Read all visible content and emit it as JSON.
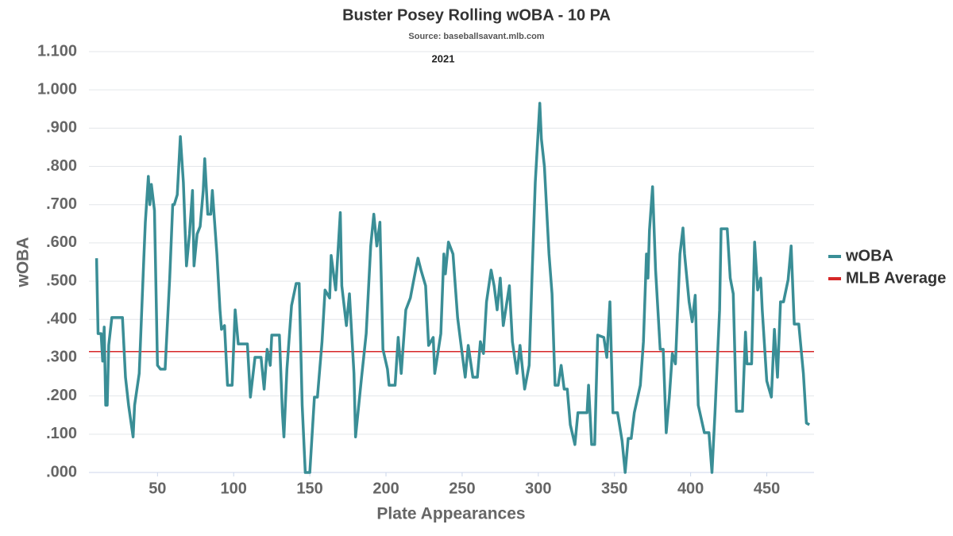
{
  "chart_data": {
    "type": "line",
    "title": "Buster Posey Rolling wOBA - 10 PA",
    "subtitle": "Source: baseballsavant.mlb.com",
    "annotation": "2021",
    "x_label": "Plate Appearances",
    "y_label": "wOBA",
    "xlim": [
      5,
      481
    ],
    "xticks": [
      50,
      100,
      150,
      200,
      250,
      300,
      350,
      400,
      450
    ],
    "ylim": [
      0,
      1.1
    ],
    "yticks": [
      {
        "value": 0,
        "label": ".000"
      },
      {
        "value": 0.1,
        "label": ".100"
      },
      {
        "value": 0.2,
        "label": ".200"
      },
      {
        "value": 0.3,
        "label": ".300"
      },
      {
        "value": 0.4,
        "label": ".400"
      },
      {
        "value": 0.5,
        "label": ".500"
      },
      {
        "value": 0.6,
        "label": ".600"
      },
      {
        "value": 0.7,
        "label": ".700"
      },
      {
        "value": 0.8,
        "label": ".800"
      },
      {
        "value": 0.9,
        "label": ".900"
      },
      {
        "value": 1.0,
        "label": "1.000"
      },
      {
        "value": 1.1,
        "label": "1.100"
      }
    ],
    "grid": true,
    "legend": "right",
    "x": [
      10,
      11,
      13,
      14,
      15,
      16,
      17,
      18,
      20,
      27,
      29,
      31,
      34,
      35,
      38,
      41,
      42,
      44,
      45,
      46,
      48,
      50,
      52,
      55,
      58,
      60,
      61,
      63,
      65,
      67,
      69,
      71,
      73,
      74,
      76,
      78,
      80,
      81,
      83,
      85,
      86,
      89,
      91,
      92,
      94,
      96,
      99,
      101,
      103,
      109,
      111,
      114,
      118,
      120,
      122,
      124,
      125,
      130,
      132,
      133,
      135,
      138,
      141,
      143,
      145,
      147,
      150,
      153,
      155,
      158,
      160,
      163,
      164,
      167,
      170,
      171,
      174,
      176,
      179,
      180,
      184,
      187,
      190,
      192,
      194,
      196,
      198,
      201,
      202,
      206,
      208,
      210,
      213,
      216,
      218,
      221,
      223,
      226,
      228,
      231,
      232,
      236,
      238,
      239,
      241,
      244,
      247,
      249,
      252,
      254,
      257,
      260,
      262,
      264,
      266,
      269,
      271,
      273,
      275,
      277,
      281,
      283,
      286,
      288,
      291,
      294,
      296,
      298,
      301,
      302,
      304,
      307,
      309,
      311,
      313,
      315,
      317,
      319,
      321,
      324,
      326,
      332,
      333,
      335,
      337,
      339,
      343,
      345,
      347,
      349,
      352,
      355,
      357,
      359,
      361,
      363,
      367,
      369,
      371,
      372,
      373,
      375,
      377,
      380,
      382,
      384,
      386,
      388,
      390,
      393,
      395,
      396,
      399,
      401,
      403,
      405,
      409,
      412,
      414,
      416,
      419,
      420,
      424,
      426,
      428,
      430,
      434,
      436,
      437,
      440,
      442,
      444,
      446,
      447,
      450,
      453,
      455,
      457,
      459,
      461,
      464,
      466,
      468,
      471,
      473,
      474,
      476,
      478
    ],
    "series": [
      {
        "name": "wOBA",
        "color": "#3a8e96",
        "values": [
          0.56,
          0.363,
          0.363,
          0.291,
          0.38,
          0.176,
          0.176,
          0.333,
          0.405,
          0.405,
          0.249,
          0.176,
          0.093,
          0.176,
          0.259,
          0.56,
          0.654,
          0.774,
          0.7,
          0.753,
          0.685,
          0.28,
          0.27,
          0.27,
          0.508,
          0.7,
          0.7,
          0.726,
          0.878,
          0.758,
          0.54,
          0.623,
          0.737,
          0.54,
          0.623,
          0.643,
          0.737,
          0.82,
          0.675,
          0.675,
          0.737,
          0.571,
          0.425,
          0.374,
          0.384,
          0.228,
          0.228,
          0.425,
          0.336,
          0.336,
          0.197,
          0.301,
          0.301,
          0.218,
          0.322,
          0.28,
          0.359,
          0.359,
          0.156,
          0.093,
          0.27,
          0.436,
          0.494,
          0.494,
          0.176,
          0.0,
          0.0,
          0.197,
          0.197,
          0.342,
          0.477,
          0.456,
          0.567,
          0.477,
          0.679,
          0.488,
          0.384,
          0.467,
          0.259,
          0.093,
          0.249,
          0.363,
          0.592,
          0.675,
          0.592,
          0.654,
          0.322,
          0.27,
          0.228,
          0.228,
          0.353,
          0.259,
          0.425,
          0.456,
          0.498,
          0.56,
          0.529,
          0.488,
          0.332,
          0.353,
          0.259,
          0.363,
          0.571,
          0.519,
          0.602,
          0.571,
          0.405,
          0.342,
          0.249,
          0.332,
          0.249,
          0.249,
          0.342,
          0.311,
          0.446,
          0.529,
          0.488,
          0.425,
          0.508,
          0.384,
          0.488,
          0.342,
          0.259,
          0.332,
          0.218,
          0.28,
          0.529,
          0.758,
          0.965,
          0.872,
          0.8,
          0.571,
          0.467,
          0.228,
          0.228,
          0.28,
          0.218,
          0.218,
          0.125,
          0.073,
          0.156,
          0.156,
          0.228,
          0.073,
          0.073,
          0.359,
          0.353,
          0.301,
          0.446,
          0.156,
          0.156,
          0.083,
          0.0,
          0.089,
          0.089,
          0.156,
          0.228,
          0.342,
          0.571,
          0.508,
          0.633,
          0.747,
          0.529,
          0.322,
          0.322,
          0.104,
          0.197,
          0.311,
          0.284,
          0.571,
          0.639,
          0.571,
          0.446,
          0.394,
          0.463,
          0.176,
          0.104,
          0.104,
          0.0,
          0.156,
          0.425,
          0.637,
          0.637,
          0.508,
          0.467,
          0.16,
          0.16,
          0.367,
          0.284,
          0.284,
          0.602,
          0.477,
          0.508,
          0.425,
          0.239,
          0.197,
          0.374,
          0.249,
          0.446,
          0.446,
          0.504,
          0.592,
          0.388,
          0.388,
          0.301,
          0.259,
          0.129,
          0.125
        ]
      }
    ],
    "reference_line": {
      "name": "MLB Average",
      "value": 0.316,
      "color": "#d62728"
    }
  }
}
